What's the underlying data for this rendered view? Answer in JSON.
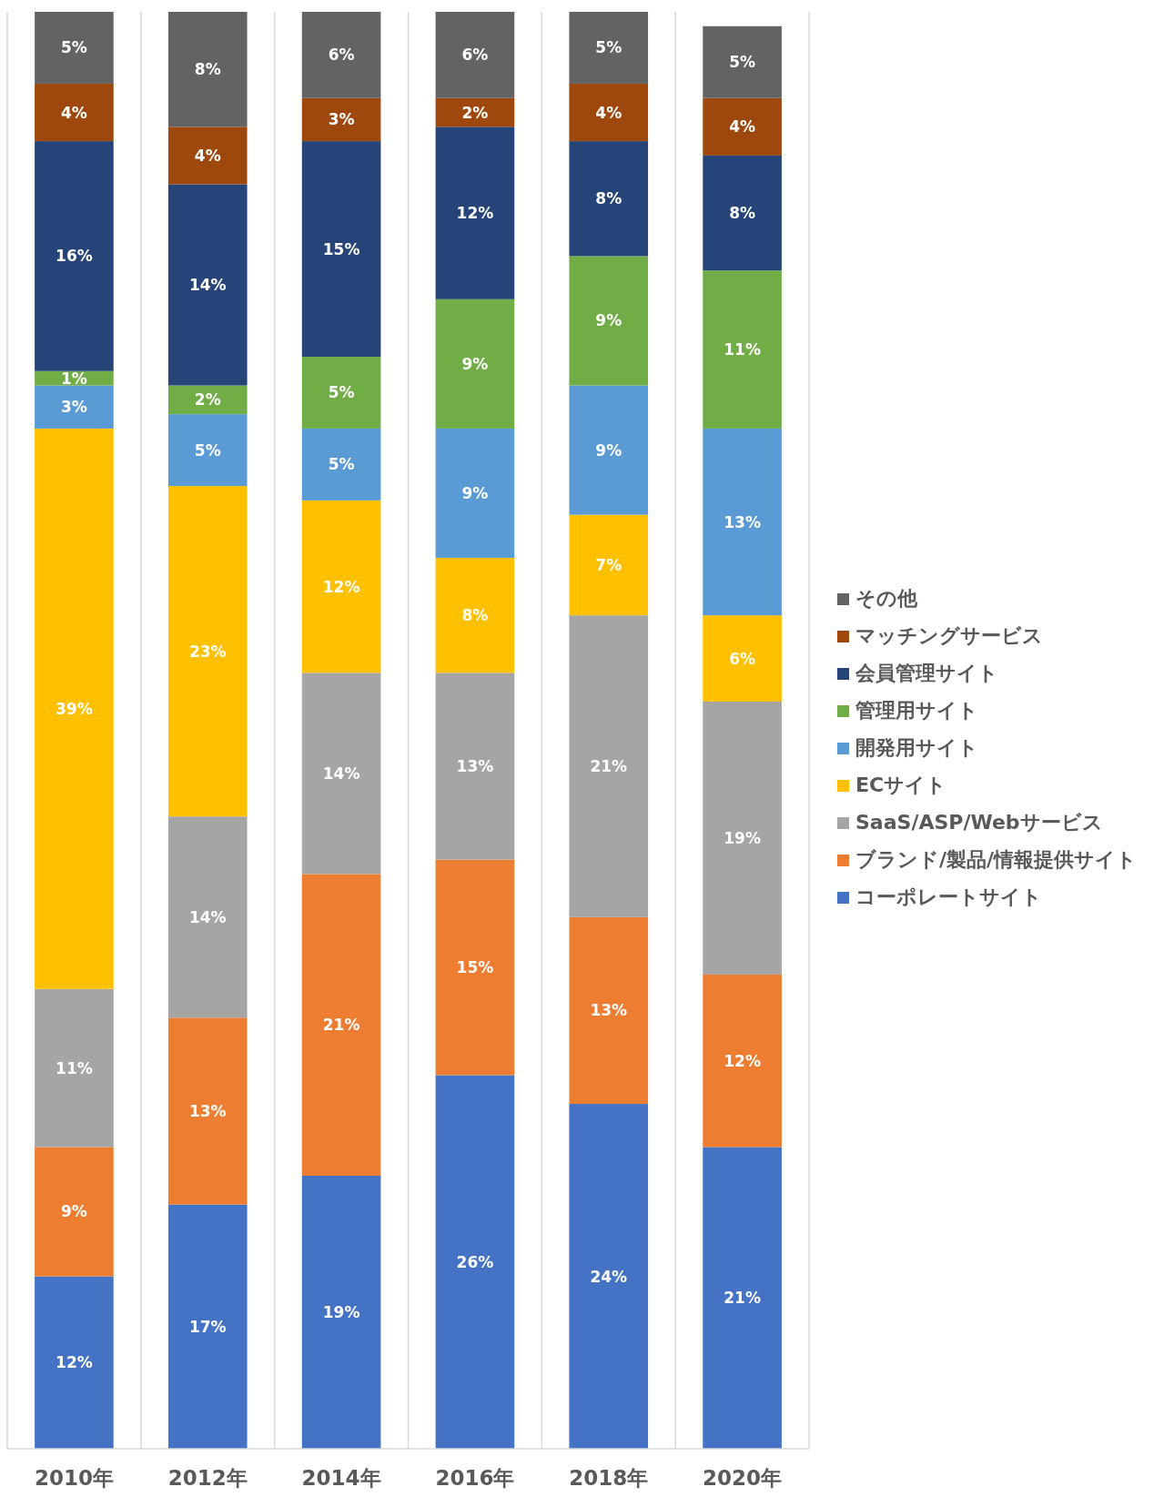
{
  "chart_data": {
    "type": "bar",
    "stacked": true,
    "categories": [
      "2010年",
      "2012年",
      "2014年",
      "2016年",
      "2018年",
      "2020年"
    ],
    "grid": "x",
    "legend": "right",
    "tick_labels": "x",
    "series": [
      {
        "name": "コーポレートサイト",
        "color": "#4472c4",
        "values": [
          12,
          17,
          19,
          26,
          24,
          21
        ],
        "value_labels": [
          "12%",
          "17%",
          "19%",
          "26%",
          "24%",
          "21%"
        ]
      },
      {
        "name": "ブランド/製品/情報提供サイト",
        "color": "#ed7d31",
        "values": [
          9,
          13,
          21,
          15,
          13,
          12
        ],
        "value_labels": [
          "9%",
          "13%",
          "21%",
          "15%",
          "13%",
          "12%"
        ]
      },
      {
        "name": "SaaS/ASP/Webサービス",
        "color": "#a5a5a5",
        "values": [
          11,
          14,
          14,
          13,
          21,
          19
        ],
        "value_labels": [
          "11%",
          "14%",
          "14%",
          "13%",
          "21%",
          "19%"
        ]
      },
      {
        "name": "ECサイト",
        "color": "#ffc000",
        "values": [
          39,
          23,
          12,
          8,
          7,
          6
        ],
        "value_labels": [
          "39%",
          "23%",
          "12%",
          "8%",
          "7%",
          "6%"
        ]
      },
      {
        "name": "開発用サイト",
        "color": "#5b9bd5",
        "values": [
          3,
          5,
          5,
          9,
          9,
          13
        ],
        "value_labels": [
          "3%",
          "5%",
          "5%",
          "9%",
          "9%",
          "13%"
        ]
      },
      {
        "name": "管理用サイト",
        "color": "#70ad47",
        "values": [
          1,
          2,
          5,
          9,
          9,
          11
        ],
        "value_labels": [
          "1%",
          "2%",
          "5%",
          "9%",
          "9%",
          "11%"
        ]
      },
      {
        "name": "会員管理サイト",
        "color": "#264478",
        "values": [
          16,
          14,
          15,
          12,
          8,
          8
        ],
        "value_labels": [
          "16%",
          "14%",
          "15%",
          "12%",
          "8%",
          "8%"
        ]
      },
      {
        "name": "マッチングサービス",
        "color": "#9e480e",
        "values": [
          4,
          4,
          3,
          2,
          4,
          4
        ],
        "value_labels": [
          "4%",
          "4%",
          "3%",
          "2%",
          "4%",
          "4%"
        ]
      },
      {
        "name": "その他",
        "color": "#636363",
        "values": [
          5,
          8,
          6,
          6,
          5,
          5
        ],
        "value_labels": [
          "5%",
          "8%",
          "6%",
          "6%",
          "5%",
          "5%"
        ]
      }
    ]
  }
}
